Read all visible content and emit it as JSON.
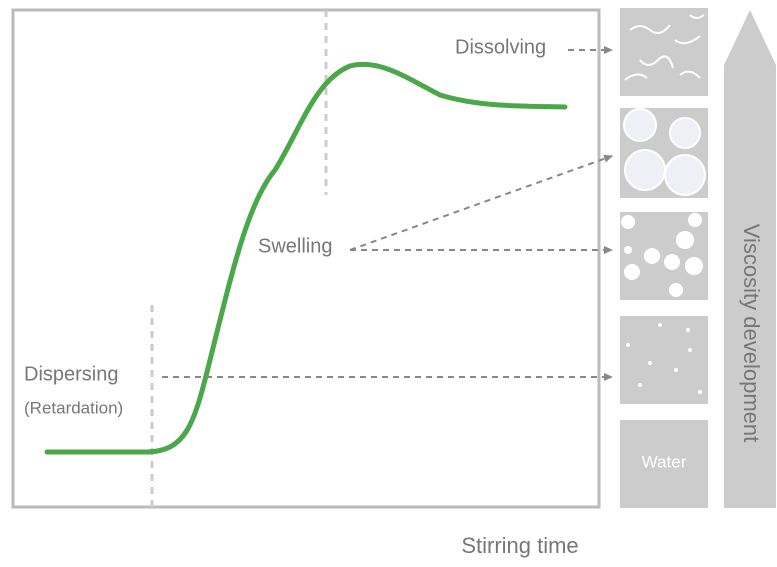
{
  "stages": {
    "dissolving": "Dissolving",
    "swelling": "Swelling",
    "dispersing": "Dispersing",
    "retardation": "(Retardation)",
    "water": "Water"
  },
  "axis": {
    "x_label": "Stirring time",
    "y_label": "Viscosity development"
  }
}
